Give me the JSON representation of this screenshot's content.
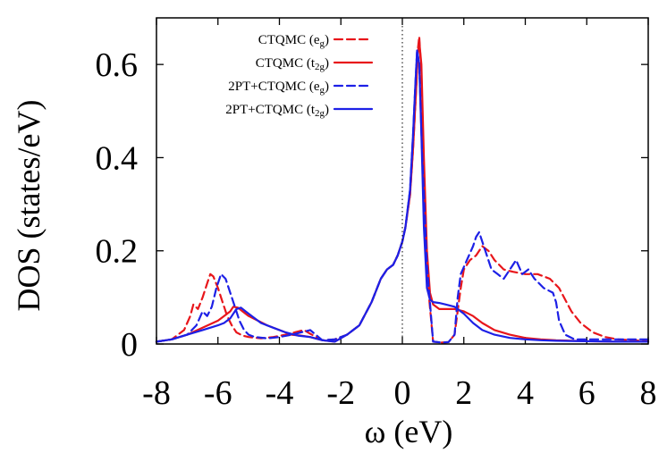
{
  "chart_data": {
    "type": "line",
    "title": "",
    "xlabel": "ω  (eV)",
    "ylabel": "DOS (states/eV)",
    "xlim": [
      -8,
      8
    ],
    "ylim": [
      0,
      0.7
    ],
    "xticks": [
      -8,
      -6,
      -4,
      -2,
      0,
      2,
      4,
      6,
      8
    ],
    "xtick_labels": [
      "-8",
      "-6",
      "-4",
      "-2",
      "0",
      "2",
      "4",
      "6",
      "8"
    ],
    "yticks": [
      0,
      0.2,
      0.4,
      0.6
    ],
    "ytick_labels": [
      "0",
      "0.2",
      "0.4",
      "0.6"
    ],
    "vertical_line_at": 0,
    "legend_position": "top-left",
    "series": [
      {
        "name": "CTQMC (e g)",
        "legend_main": "CTQMC (e",
        "legend_sub": "g",
        "legend_tail": ")",
        "color": "#e8161b",
        "style": "dashed",
        "x": [
          -8,
          -7.5,
          -7.1,
          -6.9,
          -6.8,
          -6.65,
          -6.5,
          -6.35,
          -6.25,
          -6.15,
          -6.0,
          -5.85,
          -5.7,
          -5.55,
          -5.4,
          -5.2,
          -5.0,
          -4.6,
          -4.2,
          -3.8,
          -3.5,
          -3.2,
          -3.0,
          -2.6,
          -2.2,
          -1.8,
          -1.4,
          -1.0,
          -0.7,
          -0.5,
          -0.3,
          -0.15,
          0.0,
          0.1,
          0.25,
          0.35,
          0.45,
          0.5,
          0.55,
          0.62,
          0.7,
          0.8,
          1.0,
          1.3,
          1.5,
          1.7,
          1.9,
          2.0,
          2.2,
          2.4,
          2.6,
          2.8,
          3.0,
          3.3,
          3.6,
          4.0,
          4.4,
          4.8,
          5.1,
          5.3,
          5.5,
          5.8,
          6.2,
          6.6,
          7.0,
          8.0
        ],
        "y": [
          0.005,
          0.01,
          0.03,
          0.06,
          0.085,
          0.075,
          0.1,
          0.13,
          0.15,
          0.145,
          0.12,
          0.09,
          0.06,
          0.04,
          0.025,
          0.018,
          0.015,
          0.012,
          0.015,
          0.02,
          0.025,
          0.03,
          0.022,
          0.008,
          0.01,
          0.02,
          0.04,
          0.09,
          0.14,
          0.16,
          0.17,
          0.19,
          0.22,
          0.25,
          0.32,
          0.42,
          0.55,
          0.63,
          0.66,
          0.58,
          0.35,
          0.15,
          0.005,
          0.003,
          0.004,
          0.02,
          0.12,
          0.16,
          0.18,
          0.19,
          0.21,
          0.2,
          0.18,
          0.16,
          0.155,
          0.15,
          0.15,
          0.14,
          0.12,
          0.095,
          0.07,
          0.045,
          0.025,
          0.015,
          0.01,
          0.006
        ]
      },
      {
        "name": "CTQMC (t2g)",
        "legend_main": "CTQMC (t",
        "legend_sub": "2g",
        "legend_tail": ")",
        "color": "#e8161b",
        "style": "solid",
        "x": [
          -8,
          -7.5,
          -7.0,
          -6.5,
          -6.0,
          -5.8,
          -5.6,
          -5.5,
          -5.35,
          -5.2,
          -5.0,
          -4.7,
          -4.4,
          -4.0,
          -3.6,
          -3.3,
          -3.0,
          -2.6,
          -2.2,
          -1.8,
          -1.4,
          -1.0,
          -0.7,
          -0.5,
          -0.3,
          -0.15,
          0.0,
          0.1,
          0.25,
          0.35,
          0.45,
          0.5,
          0.55,
          0.62,
          0.7,
          0.8,
          0.9,
          1.0,
          1.2,
          1.4,
          1.7,
          2.0,
          2.3,
          2.6,
          3.0,
          3.5,
          4.0,
          4.5,
          5.0,
          6.0,
          7.0,
          8.0
        ],
        "y": [
          0.005,
          0.01,
          0.02,
          0.035,
          0.05,
          0.06,
          0.07,
          0.08,
          0.078,
          0.07,
          0.06,
          0.05,
          0.04,
          0.03,
          0.02,
          0.018,
          0.015,
          0.008,
          0.005,
          0.02,
          0.04,
          0.09,
          0.14,
          0.16,
          0.17,
          0.19,
          0.22,
          0.25,
          0.32,
          0.42,
          0.55,
          0.62,
          0.65,
          0.6,
          0.4,
          0.2,
          0.11,
          0.085,
          0.075,
          0.075,
          0.075,
          0.07,
          0.06,
          0.045,
          0.03,
          0.02,
          0.013,
          0.01,
          0.008,
          0.006,
          0.005,
          0.005
        ]
      },
      {
        "name": "2PT+CTQMC (e g)",
        "legend_main": "2PT+CTQMC (e",
        "legend_sub": "g",
        "legend_tail": ")",
        "color": "#1d20e6",
        "style": "dashed",
        "x": [
          -8,
          -7.5,
          -7.0,
          -6.7,
          -6.5,
          -6.35,
          -6.2,
          -6.05,
          -5.9,
          -5.75,
          -5.6,
          -5.45,
          -5.3,
          -5.15,
          -5.0,
          -4.8,
          -4.4,
          -4.0,
          -3.6,
          -3.3,
          -3.0,
          -2.6,
          -2.2,
          -1.8,
          -1.4,
          -1.0,
          -0.7,
          -0.5,
          -0.3,
          -0.15,
          0.0,
          0.1,
          0.25,
          0.35,
          0.42,
          0.48,
          0.55,
          0.65,
          0.8,
          1.0,
          1.3,
          1.5,
          1.7,
          1.8,
          1.9,
          2.1,
          2.3,
          2.4,
          2.5,
          2.7,
          2.9,
          3.1,
          3.3,
          3.5,
          3.7,
          3.9,
          4.1,
          4.3,
          4.6,
          4.9,
          5.0,
          5.1,
          5.3,
          5.6,
          6.0,
          7.0,
          8.0
        ],
        "y": [
          0.005,
          0.01,
          0.02,
          0.04,
          0.07,
          0.06,
          0.08,
          0.12,
          0.15,
          0.14,
          0.11,
          0.08,
          0.05,
          0.03,
          0.02,
          0.015,
          0.012,
          0.015,
          0.02,
          0.025,
          0.03,
          0.008,
          0.01,
          0.02,
          0.04,
          0.09,
          0.14,
          0.16,
          0.17,
          0.19,
          0.22,
          0.25,
          0.33,
          0.45,
          0.55,
          0.63,
          0.6,
          0.4,
          0.17,
          0.005,
          0.003,
          0.004,
          0.02,
          0.1,
          0.15,
          0.18,
          0.21,
          0.23,
          0.24,
          0.2,
          0.16,
          0.15,
          0.14,
          0.16,
          0.18,
          0.15,
          0.16,
          0.14,
          0.12,
          0.11,
          0.09,
          0.05,
          0.02,
          0.01,
          0.01,
          0.01,
          0.01
        ]
      },
      {
        "name": "2PT+CTQMC (t2g)",
        "legend_main": "2PT+CTQMC (t",
        "legend_sub": "2g",
        "legend_tail": ")",
        "color": "#1d20e6",
        "style": "solid",
        "x": [
          -8,
          -7.5,
          -7.0,
          -6.5,
          -6.0,
          -5.8,
          -5.6,
          -5.4,
          -5.25,
          -5.1,
          -4.9,
          -4.6,
          -4.2,
          -3.8,
          -3.4,
          -3.0,
          -2.6,
          -2.2,
          -1.8,
          -1.4,
          -1.0,
          -0.7,
          -0.5,
          -0.3,
          -0.15,
          0.0,
          0.1,
          0.25,
          0.35,
          0.42,
          0.48,
          0.55,
          0.62,
          0.7,
          0.8,
          0.9,
          1.0,
          1.2,
          1.4,
          1.7,
          2.0,
          2.3,
          2.6,
          3.0,
          3.5,
          4.0,
          4.5,
          5.0,
          6.0,
          7.0,
          8.0
        ],
        "y": [
          0.005,
          0.01,
          0.02,
          0.03,
          0.04,
          0.045,
          0.055,
          0.075,
          0.078,
          0.07,
          0.06,
          0.045,
          0.035,
          0.025,
          0.018,
          0.015,
          0.008,
          0.005,
          0.02,
          0.04,
          0.09,
          0.14,
          0.16,
          0.17,
          0.19,
          0.22,
          0.25,
          0.33,
          0.45,
          0.55,
          0.63,
          0.6,
          0.45,
          0.25,
          0.12,
          0.095,
          0.09,
          0.088,
          0.085,
          0.08,
          0.065,
          0.045,
          0.03,
          0.02,
          0.013,
          0.01,
          0.008,
          0.007,
          0.006,
          0.005,
          0.005
        ]
      }
    ]
  }
}
